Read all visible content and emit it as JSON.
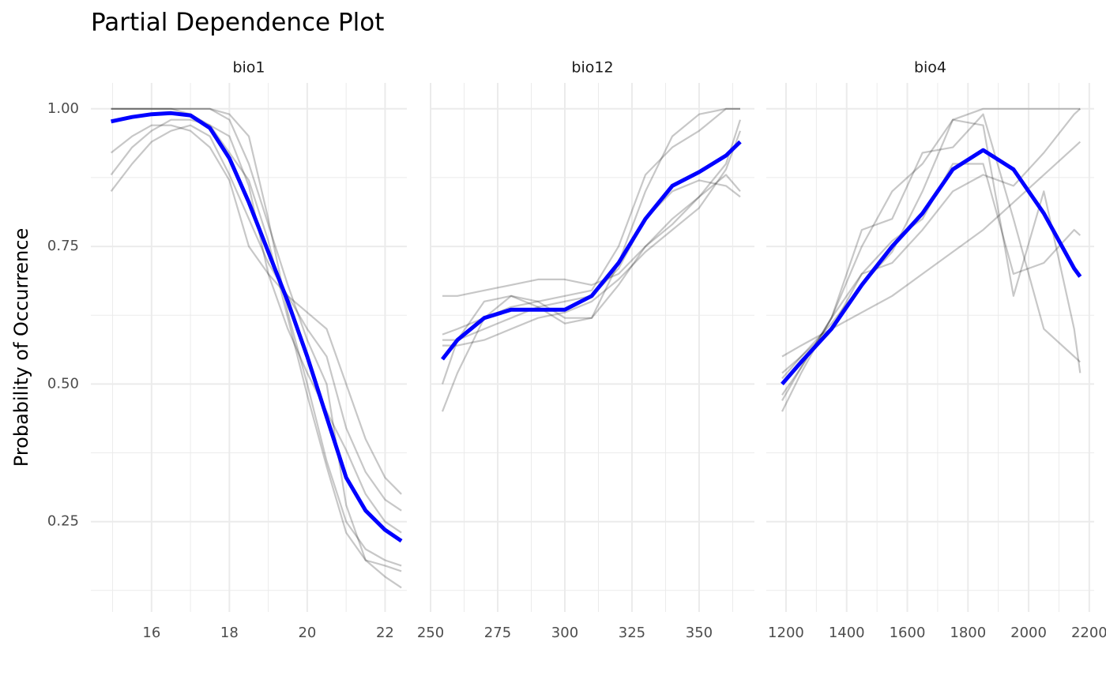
{
  "chart_data": {
    "type": "line",
    "title": "Partial Dependence Plot",
    "ylabel": "Probability of Occurrence",
    "ylim": [
      0.086,
      1.047
    ],
    "yticks": [
      0.25,
      0.5,
      0.75,
      1.0
    ],
    "yticklabels": [
      "0.25",
      "0.50",
      "0.75",
      "1.00"
    ],
    "yminor": [
      0.125,
      0.375,
      0.625,
      0.875
    ],
    "grid": true,
    "facets": [
      {
        "label": "bio1",
        "xlim": [
          14.44,
          22.56
        ],
        "xticks": [
          16,
          18,
          20,
          22
        ],
        "xminor": [
          15,
          17,
          19,
          21
        ],
        "x": [
          14.96,
          15.5,
          16,
          16.5,
          17,
          17.5,
          18,
          18.5,
          19,
          19.5,
          20,
          20.5,
          21,
          21.5,
          22,
          22.42
        ],
        "series": [
          {
            "color": "#000000",
            "opacity": 0.22,
            "values": [
              1,
              1,
              1,
              1,
              1,
              1,
              0.99,
              0.95,
              0.8,
              0.63,
              0.5,
              0.36,
              0.25,
              0.2,
              0.18,
              0.17
            ]
          },
          {
            "color": "#000000",
            "opacity": 0.22,
            "values": [
              0.85,
              0.9,
              0.94,
              0.96,
              0.97,
              0.95,
              0.88,
              0.8,
              0.72,
              0.66,
              0.63,
              0.6,
              0.5,
              0.4,
              0.33,
              0.3
            ]
          },
          {
            "color": "#000000",
            "opacity": 0.22,
            "values": [
              0.92,
              0.95,
              0.97,
              0.97,
              0.96,
              0.93,
              0.87,
              0.75,
              0.7,
              0.66,
              0.6,
              0.55,
              0.42,
              0.34,
              0.29,
              0.27
            ]
          },
          {
            "color": "#000000",
            "opacity": 0.22,
            "values": [
              1,
              1,
              1,
              1,
              0.99,
              0.97,
              0.92,
              0.87,
              0.76,
              0.62,
              0.48,
              0.35,
              0.23,
              0.18,
              0.17,
              0.16
            ]
          },
          {
            "color": "#000000",
            "opacity": 0.22,
            "values": [
              0.88,
              0.93,
              0.96,
              0.98,
              0.98,
              0.97,
              0.95,
              0.86,
              0.7,
              0.6,
              0.52,
              0.45,
              0.38,
              0.3,
              0.25,
              0.23
            ]
          },
          {
            "color": "#000000",
            "opacity": 0.22,
            "values": [
              1,
              1,
              1,
              1,
              1,
              1,
              0.98,
              0.9,
              0.79,
              0.68,
              0.58,
              0.5,
              0.28,
              0.18,
              0.15,
              0.13
            ]
          },
          {
            "color": "#0000ff",
            "opacity": 1,
            "values": [
              0.977,
              0.985,
              0.99,
              0.992,
              0.988,
              0.965,
              0.91,
              0.83,
              0.74,
              0.65,
              0.55,
              0.44,
              0.33,
              0.27,
              0.235,
              0.215
            ]
          }
        ]
      },
      {
        "label": "bio12",
        "xlim": [
          250,
          370.6
        ],
        "xticks": [
          250,
          275,
          300,
          325,
          350
        ],
        "xminor": [
          262.5,
          287.5,
          312.5,
          337.5,
          362.5
        ],
        "x": [
          254.4,
          260,
          270,
          280,
          290,
          300,
          310,
          320,
          330,
          340,
          350,
          360,
          365.3
        ],
        "series": [
          {
            "color": "#000000",
            "opacity": 0.22,
            "values": [
              0.45,
              0.52,
              0.62,
              0.66,
              0.65,
              0.62,
              0.62,
              0.72,
              0.85,
              0.95,
              0.99,
              1,
              1
            ]
          },
          {
            "color": "#000000",
            "opacity": 0.22,
            "values": [
              0.59,
              0.6,
              0.62,
              0.64,
              0.65,
              0.66,
              0.67,
              0.75,
              0.88,
              0.93,
              0.96,
              1,
              1
            ]
          },
          {
            "color": "#000000",
            "opacity": 0.22,
            "values": [
              0.66,
              0.66,
              0.67,
              0.68,
              0.69,
              0.69,
              0.68,
              0.7,
              0.75,
              0.8,
              0.84,
              0.9,
              0.98
            ]
          },
          {
            "color": "#000000",
            "opacity": 0.22,
            "values": [
              0.5,
              0.58,
              0.65,
              0.66,
              0.64,
              0.61,
              0.62,
              0.68,
              0.75,
              0.79,
              0.84,
              0.88,
              0.85
            ]
          },
          {
            "color": "#000000",
            "opacity": 0.22,
            "values": [
              0.58,
              0.58,
              0.6,
              0.62,
              0.64,
              0.65,
              0.66,
              0.71,
              0.8,
              0.85,
              0.87,
              0.86,
              0.84
            ]
          },
          {
            "color": "#000000",
            "opacity": 0.22,
            "values": [
              0.57,
              0.57,
              0.58,
              0.6,
              0.62,
              0.63,
              0.65,
              0.69,
              0.74,
              0.78,
              0.82,
              0.89,
              0.96
            ]
          },
          {
            "color": "#0000ff",
            "opacity": 1,
            "values": [
              0.545,
              0.58,
              0.62,
              0.635,
              0.635,
              0.635,
              0.66,
              0.72,
              0.8,
              0.86,
              0.885,
              0.915,
              0.94
            ]
          }
        ]
      },
      {
        "label": "bio4",
        "xlim": [
          1135,
          2216
        ],
        "xticks": [
          1200,
          1400,
          1600,
          1800,
          2000,
          2200
        ],
        "xminor": [
          1300,
          1500,
          1700,
          1900,
          2100
        ],
        "x": [
          1187,
          1250,
          1350,
          1450,
          1550,
          1650,
          1750,
          1850,
          1950,
          2050,
          2150,
          2170
        ],
        "series": [
          {
            "color": "#000000",
            "opacity": 0.22,
            "values": [
              0.55,
              0.57,
              0.6,
              0.63,
              0.66,
              0.7,
              0.74,
              0.78,
              0.83,
              0.88,
              0.93,
              0.94
            ]
          },
          {
            "color": "#000000",
            "opacity": 0.22,
            "values": [
              0.45,
              0.52,
              0.62,
              0.75,
              0.85,
              0.9,
              0.98,
              1,
              1,
              1,
              1,
              1
            ]
          },
          {
            "color": "#000000",
            "opacity": 0.22,
            "values": [
              0.48,
              0.53,
              0.62,
              0.78,
              0.8,
              0.92,
              0.93,
              0.99,
              0.8,
              0.6,
              0.55,
              0.54
            ]
          },
          {
            "color": "#000000",
            "opacity": 0.22,
            "values": [
              0.52,
              0.55,
              0.6,
              0.7,
              0.76,
              0.8,
              0.9,
              0.9,
              0.7,
              0.72,
              0.78,
              0.77
            ]
          },
          {
            "color": "#000000",
            "opacity": 0.22,
            "values": [
              0.47,
              0.53,
              0.62,
              0.7,
              0.72,
              0.78,
              0.85,
              0.88,
              0.86,
              0.92,
              0.99,
              1
            ]
          },
          {
            "color": "#000000",
            "opacity": 0.22,
            "values": [
              0.51,
              0.55,
              0.61,
              0.68,
              0.74,
              0.85,
              0.98,
              0.97,
              0.66,
              0.85,
              0.6,
              0.52
            ]
          },
          {
            "color": "#0000ff",
            "opacity": 1,
            "values": [
              0.5,
              0.54,
              0.6,
              0.68,
              0.75,
              0.81,
              0.89,
              0.925,
              0.89,
              0.81,
              0.71,
              0.695
            ]
          }
        ]
      }
    ]
  }
}
